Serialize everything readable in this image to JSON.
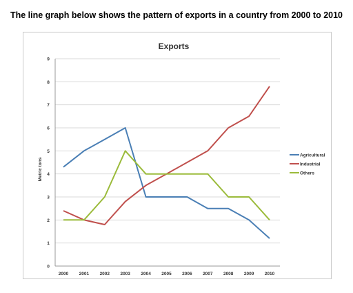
{
  "page": {
    "heading": "The line graph below shows the pattern of exports in a country from 2000 to 2010"
  },
  "chart_data": {
    "type": "line",
    "title": "Exports",
    "xlabel": "",
    "ylabel": "Metric tons",
    "x": [
      "2000",
      "2001",
      "2002",
      "2003",
      "2004",
      "2005",
      "2006",
      "2007",
      "2008",
      "2009",
      "2010"
    ],
    "ylim": [
      0,
      9
    ],
    "yticks": [
      0,
      1,
      2,
      3,
      4,
      5,
      6,
      7,
      8,
      9
    ],
    "grid": true,
    "legend_position": "right",
    "series": [
      {
        "name": "Agricultural",
        "color": "#4a7fb5",
        "values": [
          4.3,
          5.0,
          5.5,
          6.0,
          3.0,
          3.0,
          3.0,
          2.5,
          2.5,
          2.0,
          1.2
        ]
      },
      {
        "name": "Industrial",
        "color": "#c0504d",
        "values": [
          2.4,
          2.0,
          1.8,
          2.8,
          3.5,
          4.0,
          4.5,
          5.0,
          6.0,
          6.5,
          7.8
        ]
      },
      {
        "name": "Others",
        "color": "#9bbb3b",
        "values": [
          2.0,
          2.0,
          3.0,
          5.0,
          4.0,
          4.0,
          4.0,
          4.0,
          3.0,
          3.0,
          2.0
        ]
      }
    ]
  }
}
